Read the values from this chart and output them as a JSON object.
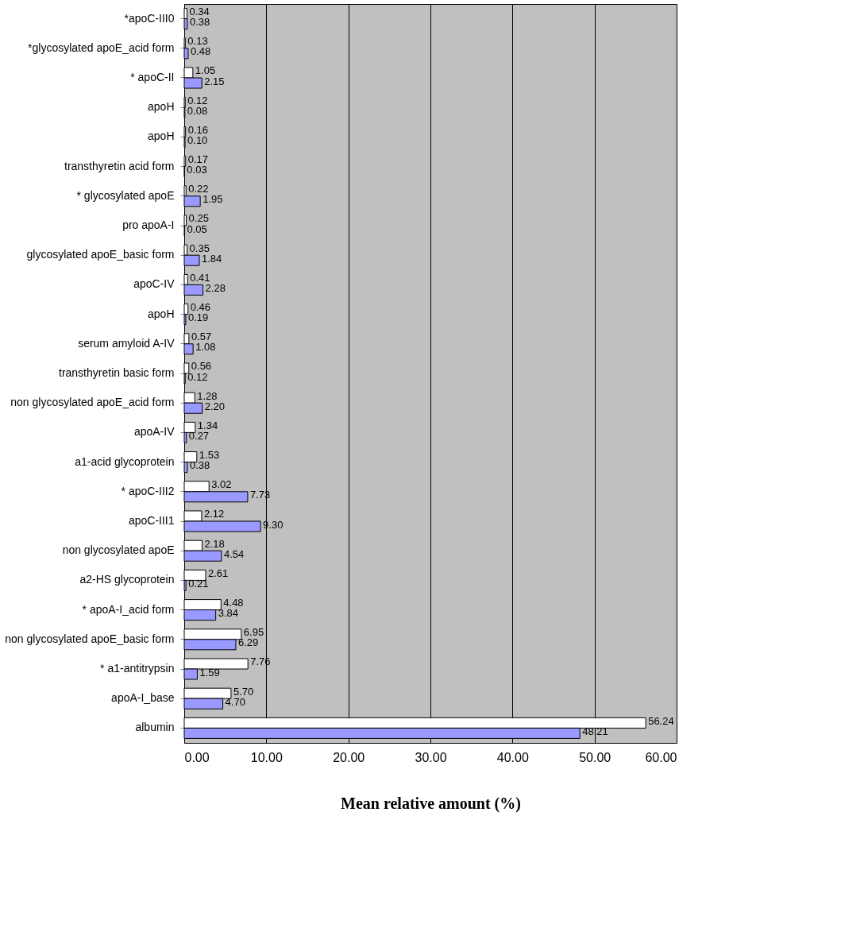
{
  "chart_data": {
    "type": "bar",
    "orientation": "horizontal",
    "xlabel": "Mean relative amount (%)",
    "categories": [
      "*apoC-III0",
      "*glycosylated apoE_acid form",
      "* apoC-II",
      "apoH",
      "apoH",
      "transthyretin acid form",
      "* glycosylated apoE",
      "pro apoA-I",
      "glycosylated apoE_basic form",
      "apoC-IV",
      "apoH",
      "serum amyloid A-IV",
      "transthyretin basic form",
      "non glycosylated apoE_acid form",
      "apoA-IV",
      "a1-acid glycoprotein",
      "* apoC-III2",
      "apoC-III1",
      "non glycosylated apoE",
      "a2-HS glycoprotein",
      "* apoA-I_acid form",
      "non glycosylated apoE_basic form",
      "* a1-antitrypsin",
      "apoA-I_base",
      "albumin"
    ],
    "series": [
      {
        "color": "#ffffff",
        "values": [
          0.34,
          0.13,
          1.05,
          0.12,
          0.16,
          0.17,
          0.22,
          0.25,
          0.35,
          0.41,
          0.46,
          0.57,
          0.56,
          1.28,
          1.34,
          1.53,
          3.02,
          2.12,
          2.18,
          2.61,
          4.48,
          6.95,
          7.76,
          5.7,
          56.24
        ],
        "value_labels": [
          "0.34",
          "0.13",
          "1.05",
          "0.12",
          "0.16",
          "0.17",
          "0.22",
          "0.25",
          "0.35",
          "0.41",
          "0.46",
          "0.57",
          "0.56",
          "1.28",
          "1.34",
          "1.53",
          "3.02",
          "2.12",
          "2.18",
          "2.61",
          "4.48",
          "6.95",
          "7.76",
          "5.70",
          "56.24"
        ]
      },
      {
        "color": "#9999ff",
        "values": [
          0.38,
          0.48,
          2.15,
          0.08,
          0.1,
          0.03,
          1.95,
          0.05,
          1.84,
          2.28,
          0.19,
          1.08,
          0.12,
          2.2,
          0.27,
          0.38,
          7.73,
          9.3,
          4.54,
          0.21,
          3.84,
          6.29,
          1.59,
          4.7,
          48.21
        ],
        "value_labels": [
          "0.38",
          "0.48",
          "2.15",
          "0.08",
          "0.10",
          "0.03",
          "1.95",
          "0.05",
          "1.84",
          "2.28",
          "0.19",
          "1.08",
          "0.12",
          "2.20",
          "0.27",
          "0.38",
          "7.73",
          "9.30",
          "4.54",
          "0.21",
          "3.84",
          "6.29",
          "1.59",
          "4.70",
          "48.21"
        ]
      }
    ],
    "xlim": [
      0,
      60
    ],
    "xticks": [
      {
        "value": 0,
        "label": "0.00"
      },
      {
        "value": 10,
        "label": "10.00"
      },
      {
        "value": 20,
        "label": "20.00"
      },
      {
        "value": 30,
        "label": "30.00"
      },
      {
        "value": 40,
        "label": "40.00"
      },
      {
        "value": 50,
        "label": "50.00"
      },
      {
        "value": 60,
        "label": "60.00"
      }
    ],
    "grid": "x",
    "legend": false
  }
}
